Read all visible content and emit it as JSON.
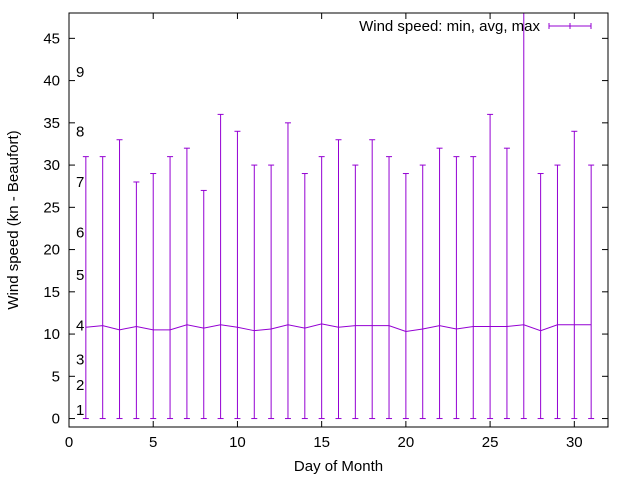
{
  "chart_data": {
    "type": "line",
    "xlabel": "Day of Month",
    "ylabel": "Wind speed (kn - Beaufort)",
    "xlim": [
      0,
      32
    ],
    "ylim": [
      -1,
      48
    ],
    "x_ticks": [
      0,
      5,
      10,
      15,
      20,
      25,
      30
    ],
    "y_ticks": [
      0,
      5,
      10,
      15,
      20,
      25,
      30,
      35,
      40,
      45
    ],
    "grid": false,
    "legend_position": "top-right",
    "series_color": "#9400d3",
    "series": [
      {
        "name": "Wind speed: min, avg, max",
        "x": [
          1,
          2,
          3,
          4,
          5,
          6,
          7,
          8,
          9,
          10,
          11,
          12,
          13,
          14,
          15,
          16,
          17,
          18,
          19,
          20,
          21,
          22,
          23,
          24,
          25,
          26,
          27,
          28,
          29,
          30,
          31
        ],
        "min": [
          0,
          0,
          0,
          0,
          0,
          0,
          0,
          0,
          0,
          0,
          0,
          0,
          0,
          0,
          0,
          0,
          0,
          0,
          0,
          0,
          0,
          0,
          0,
          0,
          0,
          0,
          0,
          0,
          0,
          0,
          0
        ],
        "avg": [
          10.8,
          11.0,
          10.5,
          10.9,
          10.5,
          10.5,
          11.1,
          10.7,
          11.1,
          10.8,
          10.4,
          10.6,
          11.1,
          10.7,
          11.2,
          10.8,
          11.0,
          11.0,
          11.0,
          10.3,
          10.6,
          11.0,
          10.6,
          10.9,
          10.9,
          10.9,
          11.1,
          10.4,
          11.1,
          11.1,
          11.1
        ],
        "max": [
          31,
          31,
          33,
          28,
          29,
          31,
          32,
          27,
          36,
          34,
          30,
          30,
          35,
          29,
          31,
          33,
          30,
          33,
          31,
          29,
          30,
          32,
          31,
          31,
          36,
          32,
          51,
          29,
          30,
          34,
          30
        ]
      }
    ],
    "annotations": [
      {
        "text": "1",
        "y": 1
      },
      {
        "text": "2",
        "y": 4
      },
      {
        "text": "3",
        "y": 7
      },
      {
        "text": "4",
        "y": 11
      },
      {
        "text": "5",
        "y": 17
      },
      {
        "text": "6",
        "y": 22
      },
      {
        "text": "7",
        "y": 28
      },
      {
        "text": "8",
        "y": 34
      },
      {
        "text": "9",
        "y": 41
      }
    ]
  }
}
